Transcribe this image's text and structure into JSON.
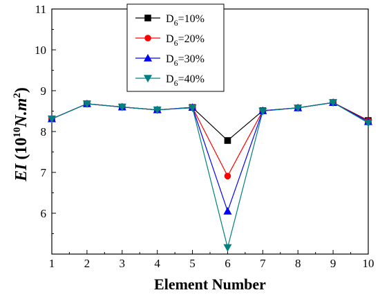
{
  "chart_data": {
    "type": "line",
    "title": "",
    "xlabel": "Element Number",
    "ylabel": {
      "main": "EI",
      "paren_open": " (10",
      "exp1": "10",
      "unit": "N.m",
      "exp2": "2",
      "paren_close": ")"
    },
    "x": [
      1,
      2,
      3,
      4,
      5,
      6,
      7,
      8,
      9,
      10
    ],
    "xlim": [
      1,
      10
    ],
    "ylim": [
      5.0,
      11.0
    ],
    "yticks": [
      6,
      7,
      8,
      9,
      10,
      11
    ],
    "grid": false,
    "legend_position": "top-center",
    "series": [
      {
        "name_parts": {
          "base": "D",
          "sub": "6",
          "rest": "=10%"
        },
        "color": "#000000",
        "marker": "square",
        "values": [
          8.31,
          8.68,
          8.6,
          8.53,
          8.59,
          7.78,
          8.51,
          8.58,
          8.71,
          8.27
        ]
      },
      {
        "name_parts": {
          "base": "D",
          "sub": "6",
          "rest": "=20%"
        },
        "color": "#ff0000",
        "marker": "circle",
        "values": [
          8.31,
          8.68,
          8.6,
          8.53,
          8.59,
          6.91,
          8.51,
          8.58,
          8.71,
          8.26
        ]
      },
      {
        "name_parts": {
          "base": "D",
          "sub": "6",
          "rest": "=30%"
        },
        "color": "#0000ff",
        "marker": "triangle-up",
        "values": [
          8.31,
          8.68,
          8.6,
          8.53,
          8.59,
          6.05,
          8.51,
          8.58,
          8.71,
          8.24
        ]
      },
      {
        "name_parts": {
          "base": "D",
          "sub": "6",
          "rest": "=40%"
        },
        "color": "#008080",
        "marker": "triangle-down",
        "values": [
          8.31,
          8.68,
          8.6,
          8.53,
          8.58,
          5.16,
          8.5,
          8.58,
          8.71,
          8.21
        ]
      }
    ]
  }
}
